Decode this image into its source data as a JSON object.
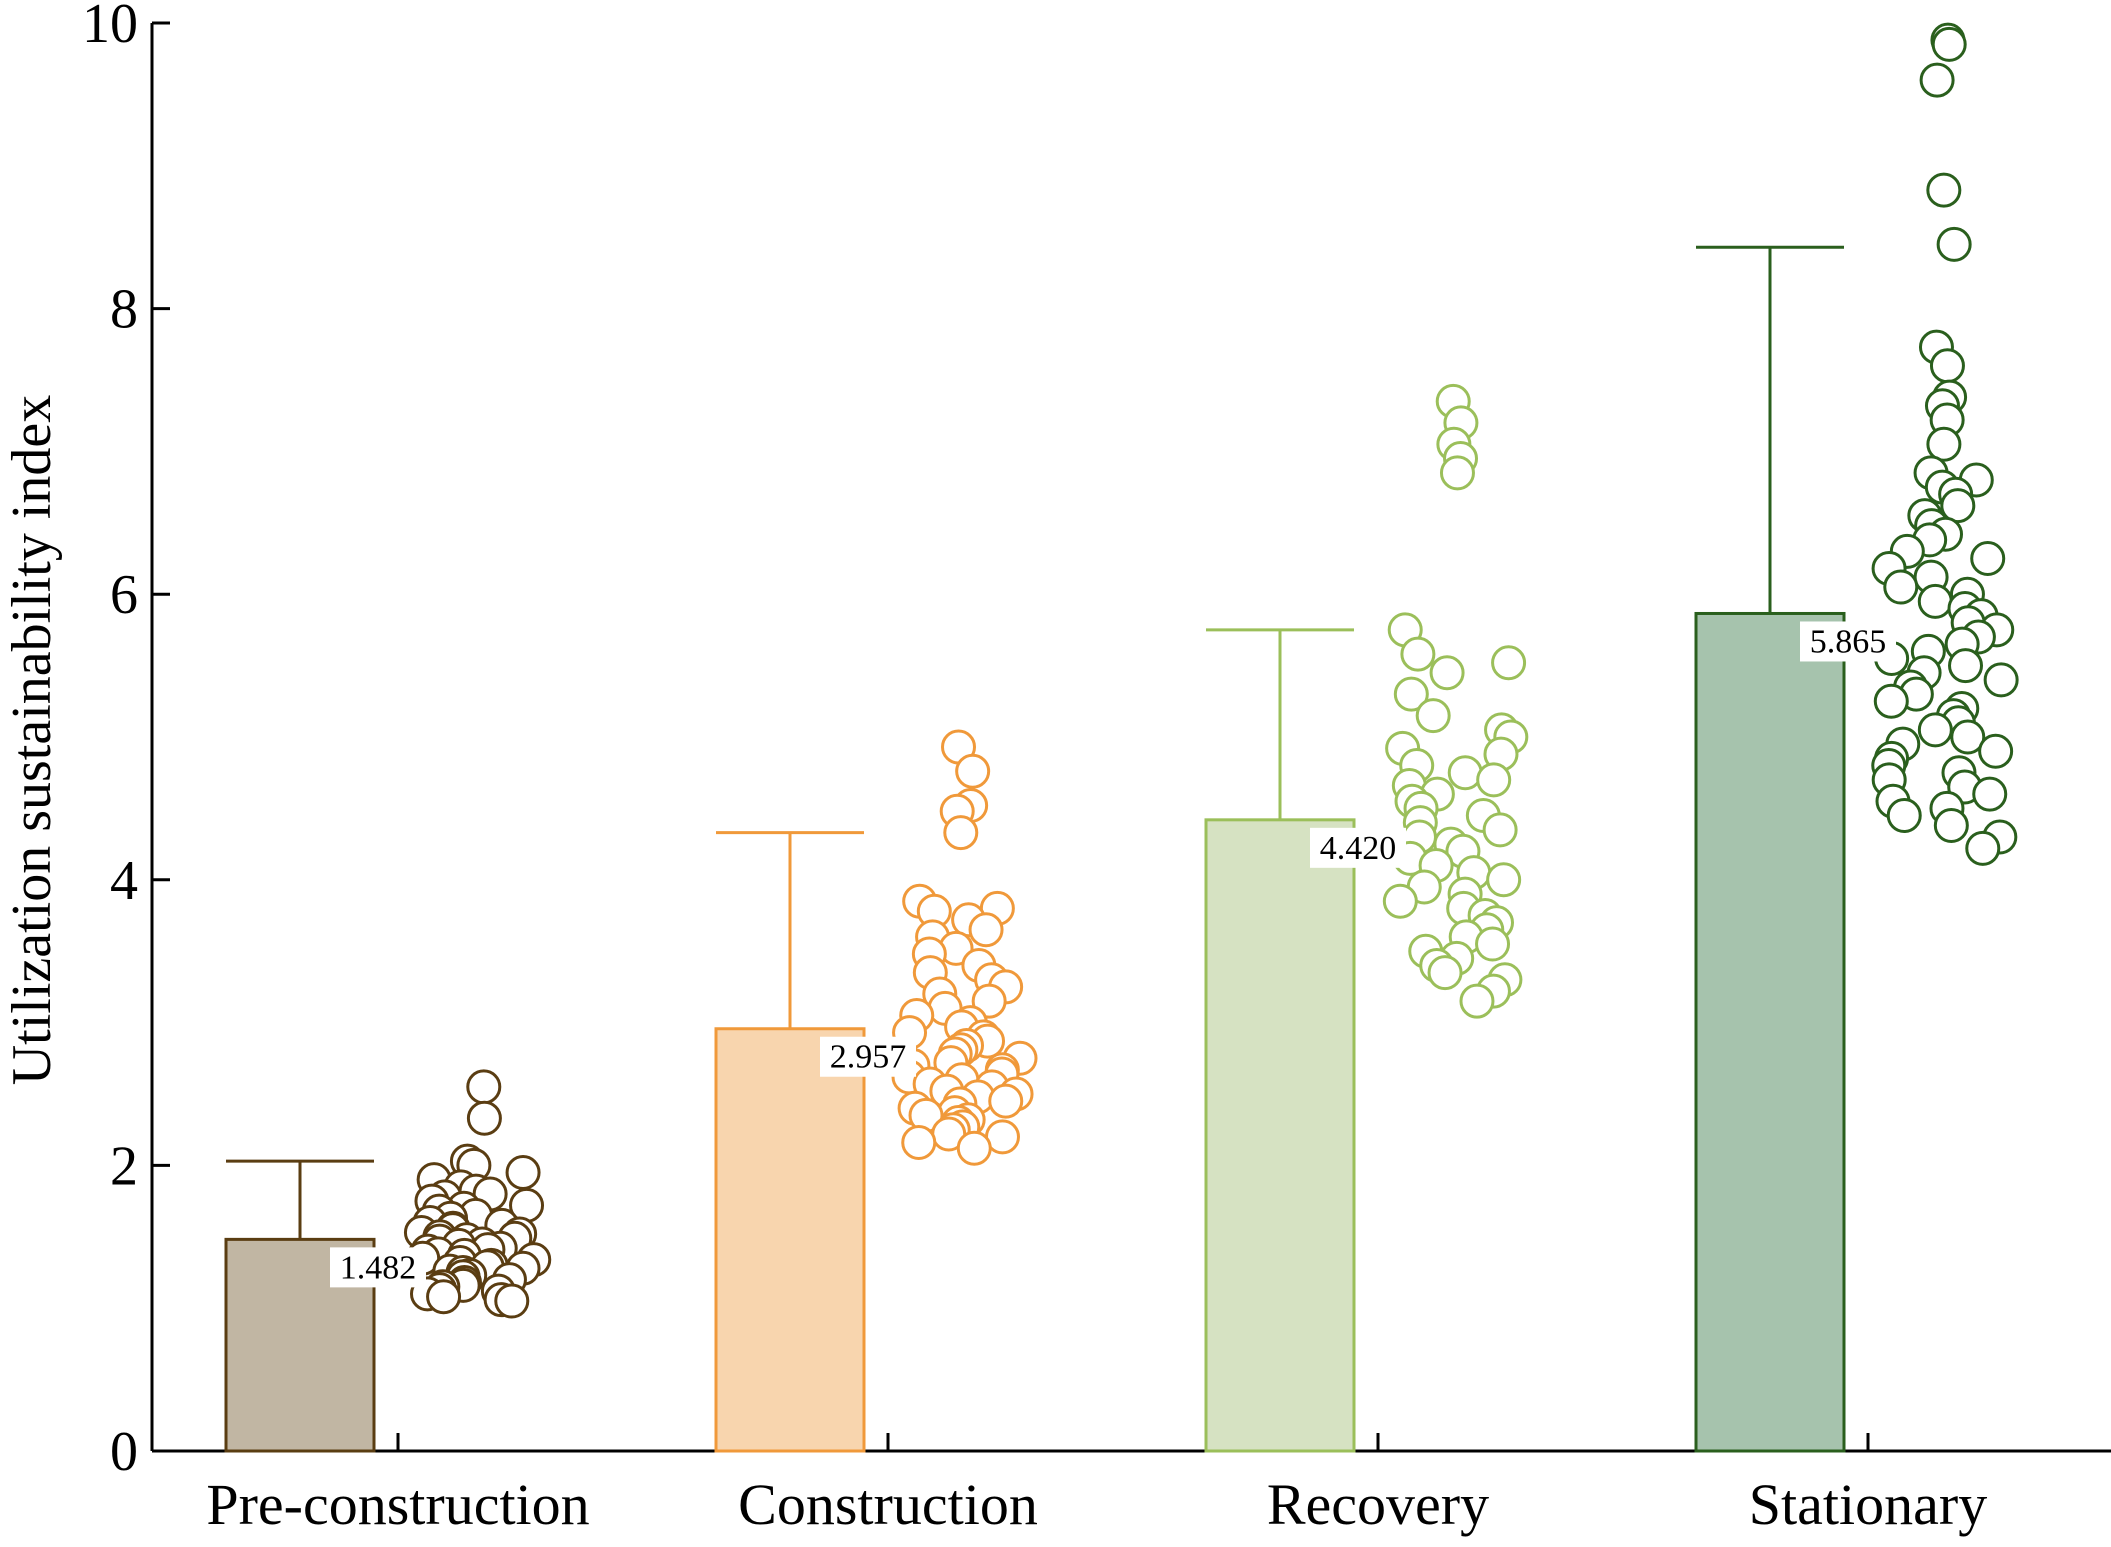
{
  "chart_data": {
    "type": "bar",
    "ylabel": "Utilization sustainability index",
    "xlabel": "",
    "ylim": [
      0,
      10
    ],
    "yticks": [
      "0",
      "2",
      "4",
      "6",
      "8",
      "10"
    ],
    "categories": [
      "Pre-construction",
      "Construction",
      "Recovery",
      "Stationary"
    ],
    "values": [
      1.482,
      2.957,
      4.42,
      5.865
    ],
    "value_labels": [
      "1.482",
      "2.957",
      "4.420",
      "5.865"
    ],
    "error_upper": [
      2.03,
      4.33,
      5.75,
      8.43
    ],
    "grid": false,
    "legend": "none",
    "colors": {
      "bar_fill": [
        "#c1b6a3",
        "#f8d5ae",
        "#d6e2c2",
        "#a6c3ad"
      ],
      "edge": [
        "#5a3d12",
        "#f0993a",
        "#9bbf5a",
        "#2a5f1d"
      ]
    },
    "points": [
      {
        "category": "Pre-construction",
        "y_min": 1.05,
        "y_max": 2.55,
        "outliers": [
          2.55,
          2.33,
          2.03,
          2.0
        ],
        "bulk": [
          1.95,
          1.9,
          1.85,
          1.82,
          1.8,
          1.78,
          1.75,
          1.72,
          1.7,
          1.68,
          1.65,
          1.63,
          1.6,
          1.58,
          1.56,
          1.55,
          1.53,
          1.52,
          1.5,
          1.49,
          1.48,
          1.47,
          1.45,
          1.44,
          1.42,
          1.41,
          1.4,
          1.38,
          1.37,
          1.35,
          1.34,
          1.32,
          1.3,
          1.29,
          1.28,
          1.26,
          1.25,
          1.23,
          1.22,
          1.2,
          1.18,
          1.16,
          1.15,
          1.13,
          1.12,
          1.1,
          1.08,
          1.06,
          1.05
        ]
      },
      {
        "category": "Construction",
        "y_min": 2.12,
        "y_max": 4.93,
        "outliers": [
          4.93,
          4.76,
          4.52,
          4.48,
          4.33
        ],
        "bulk": [
          3.85,
          3.8,
          3.78,
          3.72,
          3.65,
          3.6,
          3.52,
          3.48,
          3.4,
          3.35,
          3.3,
          3.25,
          3.2,
          3.15,
          3.1,
          3.05,
          3.0,
          2.97,
          2.93,
          2.9,
          2.87,
          2.84,
          2.81,
          2.78,
          2.75,
          2.72,
          2.7,
          2.67,
          2.64,
          2.62,
          2.6,
          2.57,
          2.55,
          2.52,
          2.5,
          2.48,
          2.45,
          2.43,
          2.4,
          2.37,
          2.35,
          2.32,
          2.3,
          2.27,
          2.25,
          2.22,
          2.2,
          2.16,
          2.12
        ]
      },
      {
        "category": "Recovery",
        "y_min": 3.15,
        "y_max": 7.35,
        "outliers": [
          7.35,
          7.2,
          7.05,
          6.95,
          6.85
        ],
        "bulk": [
          5.75,
          5.58,
          5.52,
          5.45,
          5.3,
          5.15,
          5.05,
          5.0,
          4.92,
          4.88,
          4.8,
          4.75,
          4.7,
          4.66,
          4.6,
          4.55,
          4.5,
          4.45,
          4.4,
          4.35,
          4.3,
          4.25,
          4.2,
          4.15,
          4.1,
          4.05,
          4.0,
          3.95,
          3.9,
          3.85,
          3.8,
          3.75,
          3.7,
          3.65,
          3.6,
          3.55,
          3.5,
          3.45,
          3.4,
          3.35,
          3.3,
          3.22,
          3.15
        ]
      },
      {
        "category": "Stationary",
        "y_min": 4.22,
        "y_max": 9.88,
        "outliers": [
          9.88,
          9.85,
          9.6,
          8.83,
          8.45,
          7.73,
          7.6,
          7.38,
          7.32,
          7.22,
          7.05
        ],
        "bulk": [
          6.85,
          6.8,
          6.75,
          6.7,
          6.62,
          6.55,
          6.48,
          6.42,
          6.38,
          6.3,
          6.25,
          6.18,
          6.12,
          6.05,
          6.0,
          5.95,
          5.9,
          5.85,
          5.8,
          5.75,
          5.7,
          5.65,
          5.6,
          5.55,
          5.5,
          5.45,
          5.4,
          5.35,
          5.3,
          5.25,
          5.2,
          5.15,
          5.1,
          5.05,
          5.0,
          4.95,
          4.9,
          4.85,
          4.8,
          4.75,
          4.7,
          4.65,
          4.6,
          4.55,
          4.5,
          4.45,
          4.38,
          4.3,
          4.22
        ]
      }
    ]
  }
}
